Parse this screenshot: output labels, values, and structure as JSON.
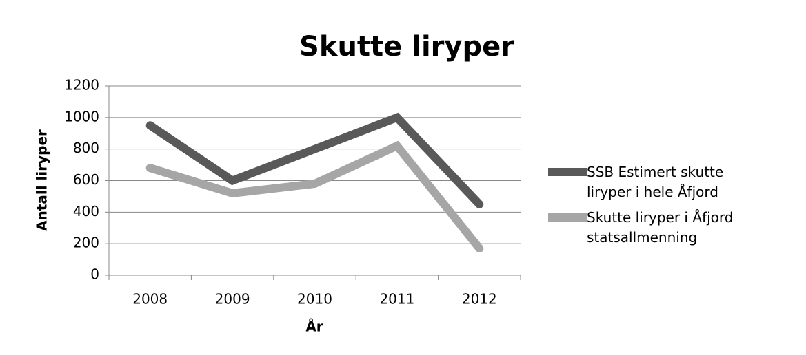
{
  "chart_data": {
    "type": "line",
    "title": "Skutte liryper",
    "x_label": "År",
    "y_label": "Antall liryper",
    "categories": [
      "2008",
      "2009",
      "2010",
      "2011",
      "2012"
    ],
    "series": [
      {
        "name": "SSB Estimert skutte liryper i hele Åfjord",
        "color": "#595959",
        "values": [
          950,
          600,
          800,
          1000,
          450
        ]
      },
      {
        "name": "Skutte liryper i Åfjord statsallmenning",
        "color": "#a6a6a6",
        "values": [
          680,
          520,
          580,
          820,
          170
        ]
      }
    ],
    "ylim": [
      0,
      1200
    ],
    "yticks": [
      0,
      200,
      400,
      600,
      800,
      1000,
      1200
    ],
    "grid": true,
    "legend": "right"
  }
}
